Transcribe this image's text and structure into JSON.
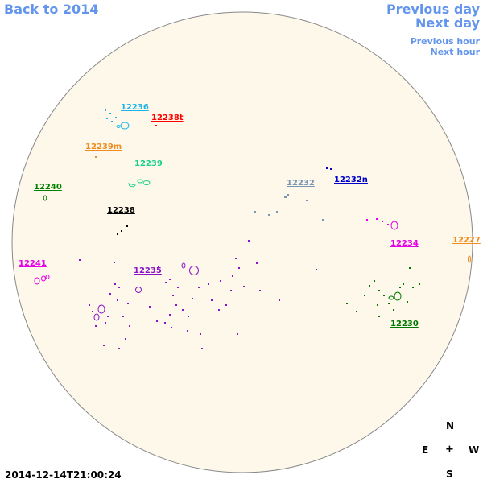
{
  "nav": {
    "back_year": "Back to 2014",
    "previous_day": "Previous day",
    "next_day": "Next day",
    "previous_hour": "Previous hour",
    "next_hour": "Next hour"
  },
  "colors": {
    "disk_fill": "#fdf8ea",
    "disk_stroke": "#888888",
    "nav_link": "#6495ed"
  },
  "regions": [
    {
      "id": "r12236",
      "label": "12236",
      "color": "#1eb4e6"
    },
    {
      "id": "r12238t",
      "label": "12238t",
      "color": "#ff0000"
    },
    {
      "id": "r12239m",
      "label": "12239m",
      "color": "#f08c1e"
    },
    {
      "id": "r12239",
      "label": "12239",
      "color": "#14d28c"
    },
    {
      "id": "r12240",
      "label": "12240",
      "color": "#008200"
    },
    {
      "id": "r12238",
      "label": "12238",
      "color": "#000000"
    },
    {
      "id": "r12232",
      "label": "12232",
      "color": "#7896b4"
    },
    {
      "id": "r12232n",
      "label": "12232n",
      "color": "#0000c8"
    },
    {
      "id": "r12234",
      "label": "12234",
      "color": "#e600e6"
    },
    {
      "id": "r12227",
      "label": "12227",
      "color": "#f08c1e"
    },
    {
      "id": "r12241",
      "label": "12241",
      "color": "#e600e6"
    },
    {
      "id": "r12235",
      "label": "12235",
      "color": "#8c14c8"
    },
    {
      "id": "r12230",
      "label": "12230",
      "color": "#007800"
    }
  ],
  "compass": {
    "north": "N",
    "south": "S",
    "east": "E",
    "west": "W",
    "center": "+"
  },
  "timestamp": "2014-12-14T21:00:24"
}
